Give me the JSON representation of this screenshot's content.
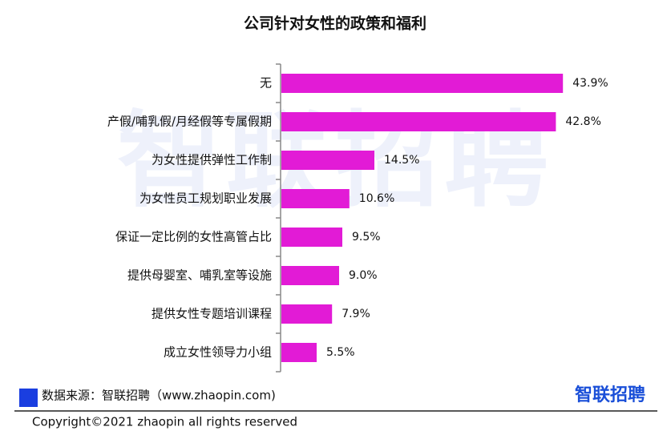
{
  "chart_data": {
    "type": "bar",
    "orientation": "horizontal",
    "title": "公司针对女性的政策和福利",
    "categories": [
      "无",
      "产假/哺乳假/月经假等专属假期",
      "为女性提供弹性工作制",
      "为女性员工规划职业发展",
      "保证一定比例的女性高管占比",
      "提供母婴室、哺乳室等设施",
      "提供女性专题培训课程",
      "成立女性领导力小组"
    ],
    "values": [
      43.9,
      42.8,
      14.5,
      10.6,
      9.5,
      9.0,
      7.9,
      5.5
    ],
    "value_labels": [
      "43.9%",
      "42.8%",
      "14.5%",
      "10.6%",
      "9.5%",
      "9.0%",
      "7.9%",
      "5.5%"
    ],
    "color": "#e21bd6",
    "xlim": [
      0,
      50
    ]
  },
  "watermark": "智联招聘",
  "source": "数据来源：智联招聘（www.zhaopin.com)",
  "logo": "智联招聘",
  "copyright": "Copyright©2021 zhaopin all rights reserved"
}
